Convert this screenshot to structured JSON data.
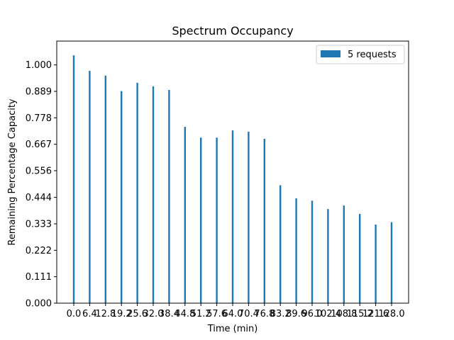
{
  "chart_data": {
    "type": "bar",
    "title": "Spectrum Occupancy",
    "xlabel": "Time (min)",
    "ylabel": "Remaining Percentage Capacity",
    "categories": [
      "0.0",
      "6.4",
      "12.8",
      "19.2",
      "25.6",
      "32.0",
      "38.4",
      "44.8",
      "51.2",
      "57.6",
      "64.0",
      "70.4",
      "76.8",
      "83.2",
      "89.6",
      "96.0",
      "102.4",
      "108.8",
      "115.2",
      "121.6",
      "128.0"
    ],
    "series": [
      {
        "name": "5 requests",
        "color": "#1f77b4",
        "values": [
          1.04,
          0.975,
          0.955,
          0.89,
          0.925,
          0.91,
          0.895,
          0.74,
          0.695,
          0.695,
          0.725,
          0.72,
          0.69,
          0.495,
          0.44,
          0.43,
          0.395,
          0.41,
          0.375,
          0.33,
          0.34
        ]
      }
    ],
    "yticks": [
      "0.000",
      "0.111",
      "0.222",
      "0.333",
      "0.444",
      "0.556",
      "0.667",
      "0.778",
      "0.889",
      "1.000"
    ],
    "ylim": [
      0,
      1.1
    ],
    "grid": false,
    "legend_position": "upper right"
  }
}
